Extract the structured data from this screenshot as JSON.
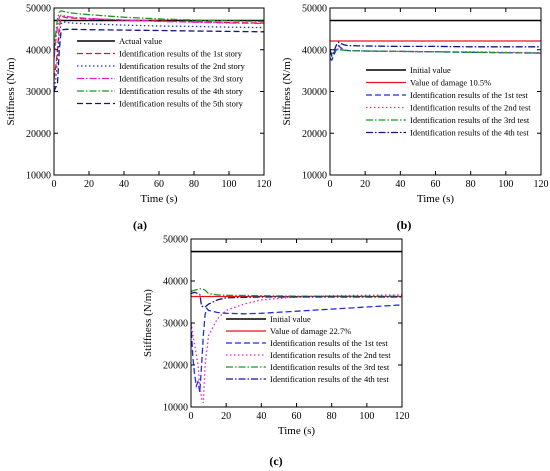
{
  "chart_data": [
    {
      "type": "line",
      "panel_label": "(a)",
      "xlabel": "Time (s)",
      "ylabel": "Stiffness (N/m)",
      "xlim": [
        0,
        120
      ],
      "ylim": [
        10000,
        50000
      ],
      "xticks": [
        "0",
        "20",
        "40",
        "60",
        "80",
        "100",
        "120"
      ],
      "yticks": [
        "10000",
        "20000",
        "30000",
        "40000",
        "50000"
      ],
      "legend_position": "right-middle",
      "series": [
        {
          "name": "Actual value",
          "color": "#000000",
          "dash": "solid",
          "x": [
            0,
            120
          ],
          "y": [
            47000,
            47000
          ]
        },
        {
          "name": "Identification results of the 1st story",
          "color": "#e8141a",
          "dash": "dashed",
          "x": [
            0,
            1,
            2,
            3,
            4,
            5,
            7,
            10,
            20,
            40,
            60,
            80,
            100,
            120
          ],
          "y": [
            33000,
            36000,
            40000,
            45500,
            47600,
            47900,
            47700,
            47600,
            47400,
            47100,
            46900,
            46700,
            46500,
            46400
          ]
        },
        {
          "name": "Identification results of the 2nd story",
          "color": "#1f2fd6",
          "dash": "dotted",
          "x": [
            0,
            1,
            2,
            3,
            4,
            5,
            7,
            10,
            20,
            40,
            60,
            80,
            100,
            120
          ],
          "y": [
            30000,
            33000,
            38000,
            44000,
            46200,
            46700,
            46500,
            46400,
            46200,
            45900,
            45700,
            45600,
            45400,
            45300
          ]
        },
        {
          "name": "Identification results of the 3rd story",
          "color": "#e81ae0",
          "dash": "dashdot",
          "x": [
            0,
            1,
            2,
            3,
            4,
            5,
            7,
            10,
            20,
            40,
            60,
            80,
            100,
            120
          ],
          "y": [
            38000,
            42000,
            45500,
            47800,
            48300,
            48200,
            48000,
            47800,
            47500,
            47100,
            46800,
            46600,
            46400,
            46300
          ]
        },
        {
          "name": "Identification results of the 4th story",
          "color": "#1a9a22",
          "dash": "dashdot",
          "x": [
            0,
            1,
            2,
            3,
            4,
            5,
            7,
            10,
            20,
            40,
            60,
            80,
            100,
            120
          ],
          "y": [
            40000,
            44000,
            47500,
            49000,
            49300,
            49200,
            49000,
            48800,
            48400,
            47800,
            47400,
            47100,
            46900,
            46800
          ]
        },
        {
          "name": "Identification results of the 5th story",
          "color": "#14148a",
          "dash": "dashed",
          "x": [
            0,
            1,
            2,
            3,
            4,
            5,
            7,
            10,
            20,
            40,
            60,
            80,
            100,
            120
          ],
          "y": [
            30000,
            31000,
            32000,
            40000,
            44200,
            44800,
            44900,
            44900,
            44800,
            44700,
            44600,
            44500,
            44400,
            44300
          ]
        }
      ]
    },
    {
      "type": "line",
      "panel_label": "(b)",
      "xlabel": "Time (s)",
      "ylabel": "Stiffness (N/m)",
      "xlim": [
        0,
        120
      ],
      "ylim": [
        10000,
        50000
      ],
      "xticks": [
        "0",
        "20",
        "40",
        "60",
        "80",
        "100",
        "120"
      ],
      "yticks": [
        "10000",
        "20000",
        "30000",
        "40000",
        "50000"
      ],
      "legend_position": "right-middle",
      "series": [
        {
          "name": "Initial value",
          "color": "#000000",
          "dash": "solid",
          "x": [
            0,
            120
          ],
          "y": [
            47000,
            47000
          ]
        },
        {
          "name": "Value of damage 10.5%",
          "color": "#e8141a",
          "dash": "solid",
          "x": [
            0,
            120
          ],
          "y": [
            42100,
            42100
          ]
        },
        {
          "name": "Identification results of the 1st test",
          "color": "#1f2fd6",
          "dash": "dashed",
          "x": [
            0,
            1,
            2,
            3,
            4,
            5,
            6,
            8,
            10,
            20,
            40,
            60,
            80,
            100,
            120
          ],
          "y": [
            38000,
            37500,
            38500,
            39500,
            40500,
            41000,
            40500,
            40000,
            39800,
            39700,
            39600,
            39500,
            39400,
            39300,
            39200
          ]
        },
        {
          "name": "Identification results of the 2nd test",
          "color": "#e81ae0",
          "dash": "dotted",
          "x": [
            0,
            1,
            2,
            3,
            4,
            5,
            6,
            8,
            10,
            20,
            40,
            60,
            80,
            100,
            120
          ],
          "y": [
            40000,
            39000,
            39500,
            40000,
            40200,
            40100,
            40000,
            39900,
            39800,
            39700,
            39600,
            39500,
            39500,
            39400,
            39300
          ]
        },
        {
          "name": "Identification results of the 3rd test",
          "color": "#1a9a22",
          "dash": "dashdot",
          "x": [
            0,
            1,
            2,
            3,
            4,
            5,
            6,
            8,
            10,
            20,
            40,
            60,
            80,
            100,
            120
          ],
          "y": [
            39500,
            39000,
            39300,
            39800,
            40000,
            40100,
            40000,
            39900,
            39800,
            39700,
            39600,
            39500,
            39400,
            39300,
            39200
          ]
        },
        {
          "name": "Identification results of the 4th test",
          "color": "#14148a",
          "dash": "dashdot",
          "x": [
            0,
            1,
            2,
            3,
            4,
            5,
            6,
            8,
            10,
            20,
            40,
            60,
            80,
            100,
            120
          ],
          "y": [
            40000,
            38500,
            39000,
            40500,
            41500,
            41800,
            41500,
            41200,
            41000,
            40900,
            40800,
            40800,
            40700,
            40700,
            40700
          ]
        }
      ]
    },
    {
      "type": "line",
      "panel_label": "(c)",
      "xlabel": "Time (s)",
      "ylabel": "Stiffness (N/m)",
      "xlim": [
        0,
        120
      ],
      "ylim": [
        10000,
        50000
      ],
      "xticks": [
        "0",
        "20",
        "40",
        "60",
        "80",
        "100",
        "120"
      ],
      "yticks": [
        "10000",
        "20000",
        "30000",
        "40000",
        "50000"
      ],
      "legend_position": "right-middle",
      "series": [
        {
          "name": "Initial value",
          "color": "#000000",
          "dash": "solid",
          "x": [
            0,
            120
          ],
          "y": [
            47000,
            47000
          ]
        },
        {
          "name": "Value of damage 22.7%",
          "color": "#e8141a",
          "dash": "solid",
          "x": [
            0,
            120
          ],
          "y": [
            36300,
            36300
          ]
        },
        {
          "name": "Identification results of the 1st test",
          "color": "#1f2fd6",
          "dash": "dashed",
          "x": [
            0,
            1,
            2,
            3,
            4,
            5,
            6,
            7,
            8,
            9,
            10,
            15,
            20,
            30,
            40,
            60,
            80,
            100,
            120
          ],
          "y": [
            30000,
            22000,
            18000,
            15000,
            16000,
            13500,
            20000,
            27000,
            32000,
            33500,
            33000,
            32500,
            32300,
            32200,
            32300,
            32800,
            33300,
            33800,
            34300
          ]
        },
        {
          "name": "Identification results of the 2nd test",
          "color": "#e81ae0",
          "dash": "dotted",
          "x": [
            0,
            2,
            4,
            5,
            6,
            7,
            8,
            10,
            15,
            20,
            30,
            40,
            60,
            80,
            100,
            120
          ],
          "y": [
            30000,
            25000,
            20000,
            15000,
            12000,
            11000,
            20000,
            27000,
            31000,
            33000,
            34500,
            35500,
            36200,
            36500,
            36600,
            36700
          ]
        },
        {
          "name": "Identification results of the 3rd test",
          "color": "#1a9a22",
          "dash": "dashdot",
          "x": [
            0,
            2,
            4,
            6,
            8,
            10,
            15,
            20,
            40,
            60,
            80,
            100,
            120
          ],
          "y": [
            37500,
            37800,
            38000,
            38200,
            37800,
            37000,
            36700,
            36600,
            36500,
            36400,
            36400,
            36400,
            36400
          ]
        },
        {
          "name": "Identification results of the 4th test",
          "color": "#14148a",
          "dash": "dashdot",
          "x": [
            0,
            2,
            4,
            5,
            6,
            8,
            10,
            15,
            20,
            40,
            60,
            80,
            100,
            120
          ],
          "y": [
            37000,
            37300,
            37000,
            36800,
            34000,
            33800,
            34500,
            35500,
            36000,
            36200,
            36200,
            36200,
            36200,
            36200
          ]
        }
      ]
    }
  ]
}
